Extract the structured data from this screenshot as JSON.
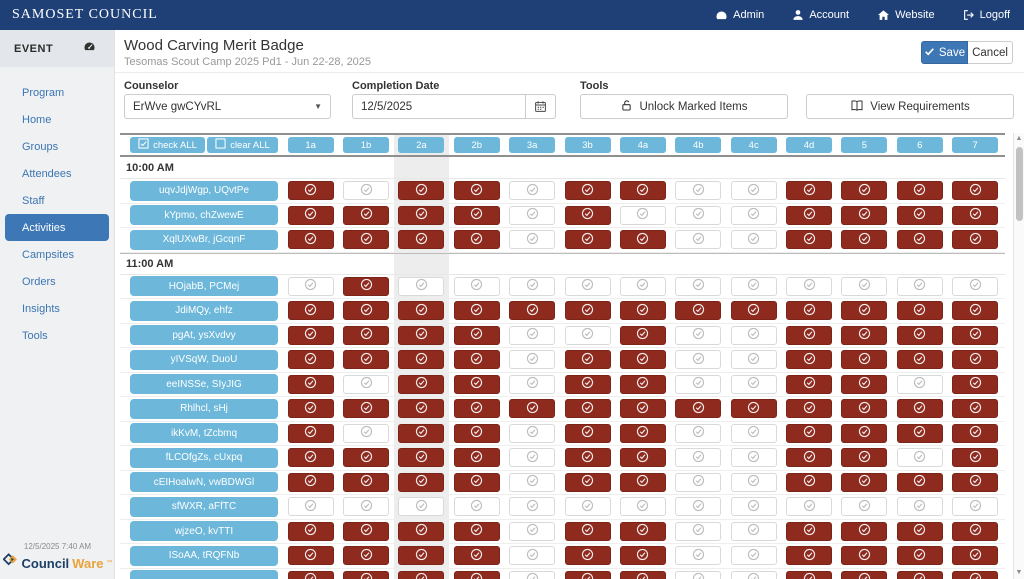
{
  "navbar": {
    "brand": "SAMOSET COUNCIL",
    "links": [
      {
        "label": "Admin",
        "icon": "gauge-icon"
      },
      {
        "label": "Account",
        "icon": "user-icon"
      },
      {
        "label": "Website",
        "icon": "home-icon"
      },
      {
        "label": "Logoff",
        "icon": "logoff-icon"
      }
    ]
  },
  "sidebar": {
    "header": "EVENT",
    "header_icon": "gauge-icon",
    "items": [
      "Program",
      "Home",
      "Groups",
      "Attendees",
      "Staff",
      "Activities",
      "Campsites",
      "Orders",
      "Insights",
      "Tools"
    ],
    "active_item": "Activities",
    "footer": {
      "timestamp": "12/5/2025 7:40 AM",
      "brand_primary": "Council",
      "brand_secondary": "Ware",
      "trademark": "™"
    }
  },
  "page": {
    "title": "Wood Carving Merit Badge",
    "subtitle": "Tesomas Scout Camp 2025 Pd1 - Jun 22-28, 2025",
    "save_label": "Save",
    "cancel_label": "Cancel"
  },
  "form": {
    "counselor_label": "Counselor",
    "counselor_value": "ErWve gwCYvRL",
    "completion_label": "Completion Date",
    "completion_value": "12/5/2025",
    "tools_label": "Tools",
    "unlock_label": "Unlock Marked Items",
    "view_requirements_label": "View Requirements"
  },
  "table": {
    "check_all_label": "check ALL",
    "clear_all_label": "clear ALL",
    "columns": [
      "1a",
      "1b",
      "2a",
      "2b",
      "3a",
      "3b",
      "4a",
      "4b",
      "4c",
      "4d",
      "5",
      "6",
      "7"
    ],
    "highlighted_column": "2a",
    "groups": [
      {
        "time": "10:00 AM",
        "rows": [
          {
            "name": "uqvJdjWgp, UQvtPe",
            "cells": [
              1,
              0,
              1,
              1,
              0,
              1,
              1,
              0,
              0,
              1,
              1,
              1,
              1
            ]
          },
          {
            "name": "kYpmo, chZwewE",
            "cells": [
              1,
              1,
              1,
              1,
              0,
              1,
              0,
              0,
              0,
              1,
              1,
              1,
              1
            ]
          },
          {
            "name": "XqlUXwBr, jGcqnF",
            "cells": [
              1,
              1,
              1,
              1,
              0,
              1,
              1,
              0,
              0,
              1,
              1,
              1,
              1
            ]
          }
        ]
      },
      {
        "time": "11:00 AM",
        "rows": [
          {
            "name": "HOjabB, PCMej",
            "cells": [
              0,
              1,
              0,
              0,
              0,
              0,
              0,
              0,
              0,
              0,
              0,
              0,
              0
            ]
          },
          {
            "name": "JdiMQy, ehfz",
            "cells": [
              1,
              1,
              1,
              1,
              1,
              1,
              1,
              1,
              1,
              1,
              1,
              1,
              1
            ]
          },
          {
            "name": "pgAt, ysXvdvy",
            "cells": [
              1,
              1,
              1,
              1,
              0,
              0,
              1,
              0,
              0,
              1,
              1,
              1,
              1
            ]
          },
          {
            "name": "yIVSqW, DuoU",
            "cells": [
              1,
              1,
              1,
              1,
              0,
              1,
              1,
              0,
              0,
              1,
              1,
              1,
              1
            ]
          },
          {
            "name": "eeINSSe, SIyJIG",
            "cells": [
              1,
              0,
              1,
              1,
              0,
              1,
              1,
              0,
              0,
              1,
              1,
              0,
              1
            ]
          },
          {
            "name": "Rhlhcl, sHj",
            "cells": [
              1,
              1,
              1,
              1,
              1,
              1,
              1,
              1,
              1,
              1,
              1,
              1,
              1
            ]
          },
          {
            "name": "ikKvM, tZcbmq",
            "cells": [
              1,
              0,
              1,
              1,
              0,
              1,
              1,
              0,
              0,
              1,
              1,
              1,
              1
            ]
          },
          {
            "name": "fLCOfgZs, cUxpq",
            "cells": [
              1,
              1,
              1,
              1,
              0,
              1,
              1,
              0,
              0,
              1,
              1,
              0,
              1
            ]
          },
          {
            "name": "cEIHoalwN, vwBDWGl",
            "cells": [
              1,
              1,
              1,
              1,
              0,
              1,
              1,
              0,
              0,
              1,
              1,
              1,
              1
            ]
          },
          {
            "name": "sfWXR, aFfTC",
            "cells": [
              0,
              0,
              0,
              0,
              0,
              0,
              0,
              0,
              0,
              0,
              0,
              0,
              0
            ]
          },
          {
            "name": "wjzeO, kvTTI",
            "cells": [
              1,
              1,
              1,
              1,
              0,
              1,
              1,
              0,
              0,
              1,
              1,
              1,
              1
            ]
          },
          {
            "name": "ISoAA, tRQFNb",
            "cells": [
              1,
              1,
              1,
              1,
              0,
              1,
              1,
              0,
              0,
              1,
              1,
              1,
              1
            ]
          },
          {
            "name": "",
            "cells": [
              1,
              1,
              1,
              1,
              0,
              1,
              1,
              0,
              0,
              1,
              1,
              1,
              1
            ]
          }
        ]
      }
    ]
  },
  "colors": {
    "navbar_navy": "#1e4076",
    "accent_blue": "#3d77b5",
    "light_blue": "#6cb7da",
    "checked_red": "#8f2a1e",
    "brand_gold": "#e8a33b"
  }
}
